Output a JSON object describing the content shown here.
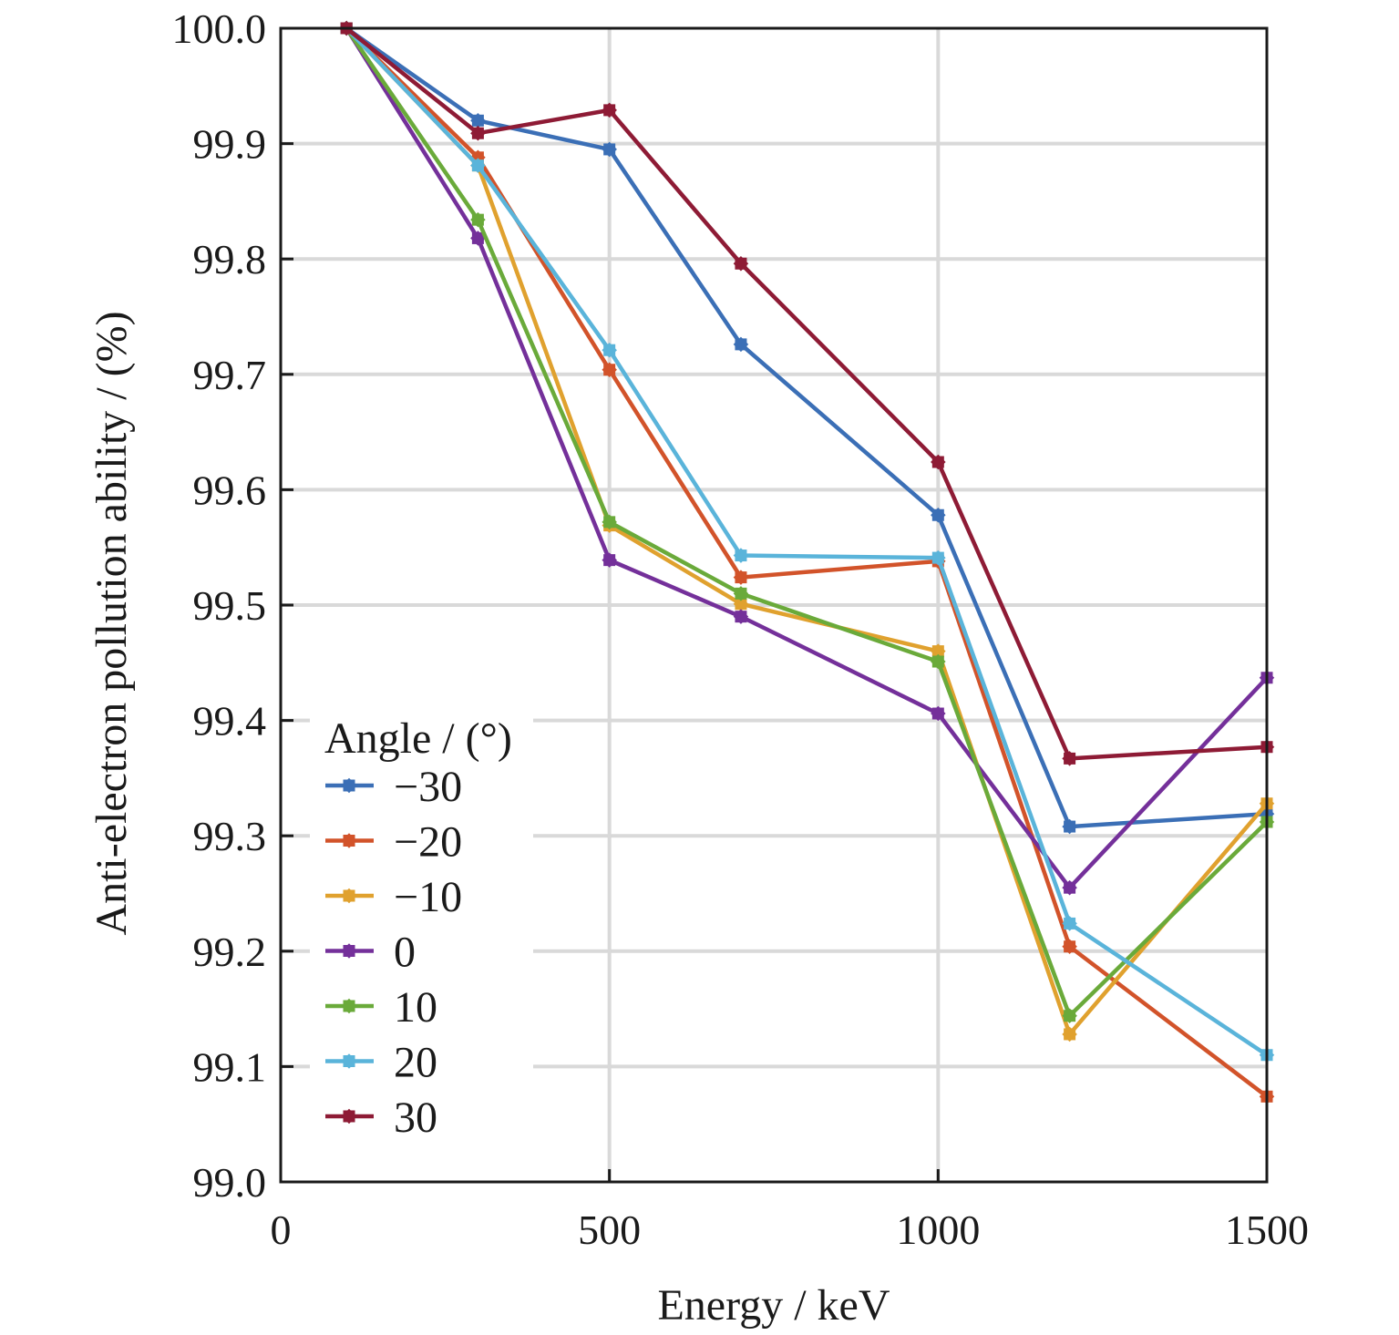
{
  "chart_data": {
    "type": "line",
    "title": "",
    "xlabel": "Energy / keV",
    "ylabel": "Anti-electron pollution ability / (%)",
    "xlim": [
      0,
      1500
    ],
    "ylim": [
      99.0,
      100.0
    ],
    "x_ticks": [
      0,
      500,
      1000,
      1500
    ],
    "x_tick_labels": [
      "0",
      "500",
      "1000",
      "1500"
    ],
    "y_ticks": [
      99.0,
      99.1,
      99.2,
      99.3,
      99.4,
      99.5,
      99.6,
      99.7,
      99.8,
      99.9,
      100.0
    ],
    "y_tick_labels": [
      "99.0",
      "99.1",
      "99.2",
      "99.3",
      "99.4",
      "99.5",
      "99.6",
      "99.7",
      "99.8",
      "99.9",
      "100.0"
    ],
    "grid": true,
    "legend_title": "Angle / (°)",
    "legend_position": "lower-left",
    "x": [
      100,
      300,
      500,
      700,
      1000,
      1200,
      1500
    ],
    "series": [
      {
        "name": "−30",
        "color": "#3b6fb6",
        "values": [
          100.0,
          99.92,
          99.895,
          99.726,
          99.578,
          99.308,
          99.319
        ]
      },
      {
        "name": "−20",
        "color": "#d2532a",
        "values": [
          100.0,
          99.888,
          99.704,
          99.524,
          99.538,
          99.204,
          99.074
        ]
      },
      {
        "name": "−10",
        "color": "#e0a12e",
        "values": [
          100.0,
          99.881,
          99.569,
          99.501,
          99.46,
          99.128,
          99.328
        ]
      },
      {
        "name": "0",
        "color": "#74309a",
        "values": [
          100.0,
          99.818,
          99.539,
          99.49,
          99.406,
          99.255,
          99.437
        ]
      },
      {
        "name": "10",
        "color": "#6aaa3a",
        "values": [
          100.0,
          99.834,
          99.572,
          99.51,
          99.451,
          99.144,
          99.312
        ]
      },
      {
        "name": "20",
        "color": "#5ab4da",
        "values": [
          100.0,
          99.881,
          99.721,
          99.543,
          99.541,
          99.224,
          99.11
        ]
      },
      {
        "name": "30",
        "color": "#8e1b35",
        "values": [
          100.0,
          99.909,
          99.929,
          99.796,
          99.624,
          99.367,
          99.377
        ]
      }
    ]
  }
}
